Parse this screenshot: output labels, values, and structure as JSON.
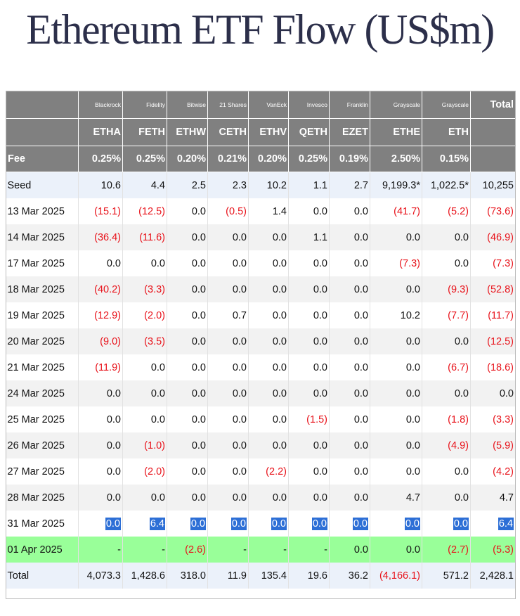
{
  "title": "Ethereum ETF Flow (US$m)",
  "issuers": [
    "Blackrock",
    "Fidelity",
    "Bitwise",
    "21 Shares",
    "VanEck",
    "Invesco",
    "Franklin",
    "Grayscale",
    "Grayscale"
  ],
  "tickers": [
    "ETHA",
    "FETH",
    "ETHW",
    "CETH",
    "ETHV",
    "QETH",
    "EZET",
    "ETHE",
    "ETH"
  ],
  "fees": [
    "0.25%",
    "0.25%",
    "0.20%",
    "0.21%",
    "0.20%",
    "0.25%",
    "0.19%",
    "2.50%",
    "0.15%"
  ],
  "total_label": "Total",
  "fee_label": "Fee",
  "colors": {
    "header_bg": "#808080",
    "negative": "#e8121a",
    "highlight": "#2d6fd6",
    "latest_row": "#99ff99",
    "band": "#ebf1fa"
  },
  "rows": [
    {
      "label": "Seed",
      "style": "seed",
      "values": [
        "10.6",
        "4.4",
        "2.5",
        "2.3",
        "10.2",
        "1.1",
        "2.7",
        "9,199.3*",
        "1,022.5*",
        "10,255"
      ]
    },
    {
      "label": "13 Mar 2025",
      "style": "odd",
      "values": [
        "(15.1)",
        "(12.5)",
        "0.0",
        "(0.5)",
        "1.4",
        "0.0",
        "0.0",
        "(41.7)",
        "(5.2)",
        "(73.6)"
      ]
    },
    {
      "label": "14 Mar 2025",
      "style": "even",
      "values": [
        "(36.4)",
        "(11.6)",
        "0.0",
        "0.0",
        "0.0",
        "1.1",
        "0.0",
        "0.0",
        "0.0",
        "(46.9)"
      ]
    },
    {
      "label": "17 Mar 2025",
      "style": "odd",
      "values": [
        "0.0",
        "0.0",
        "0.0",
        "0.0",
        "0.0",
        "0.0",
        "0.0",
        "(7.3)",
        "0.0",
        "(7.3)"
      ]
    },
    {
      "label": "18 Mar 2025",
      "style": "even",
      "values": [
        "(40.2)",
        "(3.3)",
        "0.0",
        "0.0",
        "0.0",
        "0.0",
        "0.0",
        "0.0",
        "(9.3)",
        "(52.8)"
      ]
    },
    {
      "label": "19 Mar 2025",
      "style": "odd",
      "values": [
        "(12.9)",
        "(2.0)",
        "0.0",
        "0.7",
        "0.0",
        "0.0",
        "0.0",
        "10.2",
        "(7.7)",
        "(11.7)"
      ]
    },
    {
      "label": "20 Mar 2025",
      "style": "even",
      "values": [
        "(9.0)",
        "(3.5)",
        "0.0",
        "0.0",
        "0.0",
        "0.0",
        "0.0",
        "0.0",
        "0.0",
        "(12.5)"
      ]
    },
    {
      "label": "21 Mar 2025",
      "style": "odd",
      "values": [
        "(11.9)",
        "0.0",
        "0.0",
        "0.0",
        "0.0",
        "0.0",
        "0.0",
        "0.0",
        "(6.7)",
        "(18.6)"
      ]
    },
    {
      "label": "24 Mar 2025",
      "style": "even",
      "values": [
        "0.0",
        "0.0",
        "0.0",
        "0.0",
        "0.0",
        "0.0",
        "0.0",
        "0.0",
        "0.0",
        "0.0"
      ]
    },
    {
      "label": "25 Mar 2025",
      "style": "odd",
      "values": [
        "0.0",
        "0.0",
        "0.0",
        "0.0",
        "0.0",
        "(1.5)",
        "0.0",
        "0.0",
        "(1.8)",
        "(3.3)"
      ]
    },
    {
      "label": "26 Mar 2025",
      "style": "even",
      "values": [
        "0.0",
        "(1.0)",
        "0.0",
        "0.0",
        "0.0",
        "0.0",
        "0.0",
        "0.0",
        "(4.9)",
        "(5.9)"
      ]
    },
    {
      "label": "27 Mar 2025",
      "style": "odd",
      "values": [
        "0.0",
        "(2.0)",
        "0.0",
        "0.0",
        "(2.2)",
        "0.0",
        "0.0",
        "0.0",
        "0.0",
        "(4.2)"
      ]
    },
    {
      "label": "28 Mar 2025",
      "style": "even",
      "values": [
        "0.0",
        "0.0",
        "0.0",
        "0.0",
        "0.0",
        "0.0",
        "0.0",
        "4.7",
        "0.0",
        "4.7"
      ]
    },
    {
      "label": "31 Mar 2025",
      "style": "odd",
      "highlight": true,
      "values": [
        "0.0",
        "6.4",
        "0.0",
        "0.0",
        "0.0",
        "0.0",
        "0.0",
        "0.0",
        "0.0",
        "6.4"
      ]
    },
    {
      "label": "01 Apr 2025",
      "style": "green",
      "values": [
        "-",
        "-",
        "(2.6)",
        "-",
        "-",
        "-",
        "0.0",
        "0.0",
        "(2.7)",
        "(5.3)"
      ]
    },
    {
      "label": "Total",
      "style": "tot",
      "values": [
        "4,073.3",
        "1,428.6",
        "318.0",
        "11.9",
        "135.4",
        "19.6",
        "36.2",
        "(4,166.1)",
        "571.2",
        "2,428.1"
      ]
    }
  ]
}
